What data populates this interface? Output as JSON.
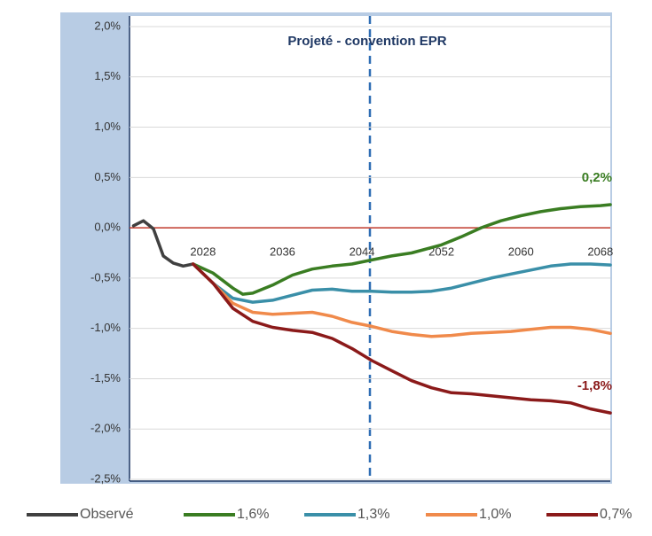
{
  "chart_data": {
    "type": "line",
    "title": "Projeté - convention EPR",
    "xlim": [
      2020.6,
      2069
    ],
    "xticks": [
      2028,
      2036,
      2044,
      2052,
      2060,
      2068
    ],
    "ylim": [
      -2.5,
      2.0
    ],
    "yticks": [
      {
        "value": 2.0,
        "label": "2,0%"
      },
      {
        "value": 1.5,
        "label": "1,5%"
      },
      {
        "value": 1.0,
        "label": "1,0%"
      },
      {
        "value": 0.5,
        "label": "0,5%"
      },
      {
        "value": 0,
        "label": "0,0%"
      },
      {
        "value": -0.5,
        "label": "-0,5%"
      },
      {
        "value": -1.0,
        "label": "-1,0%"
      },
      {
        "value": -1.5,
        "label": "-1,5%"
      },
      {
        "value": -2.0,
        "label": "-2,0%"
      },
      {
        "value": -2.5,
        "label": "-2,5%"
      }
    ],
    "grid": true,
    "zero_line_color": "#c0392b",
    "series": [
      {
        "name": "Observé",
        "color": "#404040",
        "x": [
          2021,
          2022,
          2023,
          2024,
          2025,
          2026,
          2027
        ],
        "values": [
          0.02,
          0.07,
          -0.01,
          -0.28,
          -0.35,
          -0.38,
          -0.36
        ]
      },
      {
        "name": "1,6%",
        "color": "#3a7d22",
        "end_label": "0,2%",
        "x": [
          2027,
          2029,
          2031,
          2032,
          2033,
          2035,
          2037,
          2039,
          2041,
          2043,
          2045,
          2047,
          2049,
          2052,
          2054,
          2056,
          2058,
          2060,
          2062,
          2064,
          2066,
          2068,
          2069
        ],
        "values": [
          -0.36,
          -0.45,
          -0.6,
          -0.66,
          -0.65,
          -0.57,
          -0.47,
          -0.41,
          -0.38,
          -0.36,
          -0.32,
          -0.28,
          -0.25,
          -0.17,
          -0.09,
          0.0,
          0.07,
          0.12,
          0.16,
          0.19,
          0.21,
          0.22,
          0.23
        ]
      },
      {
        "name": "1,3%",
        "color": "#3a8fa8",
        "x": [
          2027,
          2029,
          2031,
          2033,
          2035,
          2037,
          2039,
          2041,
          2043,
          2045,
          2047,
          2049,
          2051,
          2053,
          2055,
          2057,
          2059,
          2061,
          2063,
          2065,
          2067,
          2069
        ],
        "values": [
          -0.36,
          -0.55,
          -0.7,
          -0.74,
          -0.72,
          -0.67,
          -0.62,
          -0.61,
          -0.63,
          -0.63,
          -0.64,
          -0.64,
          -0.63,
          -0.6,
          -0.55,
          -0.5,
          -0.46,
          -0.42,
          -0.38,
          -0.36,
          -0.36,
          -0.37
        ]
      },
      {
        "name": "1,0%",
        "color": "#f08a4b",
        "x": [
          2027,
          2029,
          2031,
          2033,
          2035,
          2037,
          2039,
          2041,
          2043,
          2045,
          2047,
          2049,
          2051,
          2053,
          2055,
          2057,
          2059,
          2061,
          2063,
          2065,
          2067,
          2069
        ],
        "values": [
          -0.36,
          -0.55,
          -0.75,
          -0.84,
          -0.86,
          -0.85,
          -0.84,
          -0.88,
          -0.94,
          -0.98,
          -1.03,
          -1.06,
          -1.08,
          -1.07,
          -1.05,
          -1.04,
          -1.03,
          -1.01,
          -0.99,
          -0.99,
          -1.01,
          -1.05
        ]
      },
      {
        "name": "0,7%",
        "color": "#8b1a1a",
        "end_label": "-1,8%",
        "x": [
          2027,
          2029,
          2031,
          2033,
          2035,
          2037,
          2039,
          2041,
          2043,
          2045,
          2047,
          2049,
          2051,
          2053,
          2055,
          2057,
          2059,
          2061,
          2063,
          2065,
          2067,
          2069
        ],
        "values": [
          -0.36,
          -0.55,
          -0.8,
          -0.93,
          -0.99,
          -1.02,
          -1.04,
          -1.1,
          -1.2,
          -1.32,
          -1.42,
          -1.52,
          -1.59,
          -1.64,
          -1.65,
          -1.67,
          -1.69,
          -1.71,
          -1.72,
          -1.74,
          -1.8,
          -1.84
        ]
      }
    ]
  }
}
